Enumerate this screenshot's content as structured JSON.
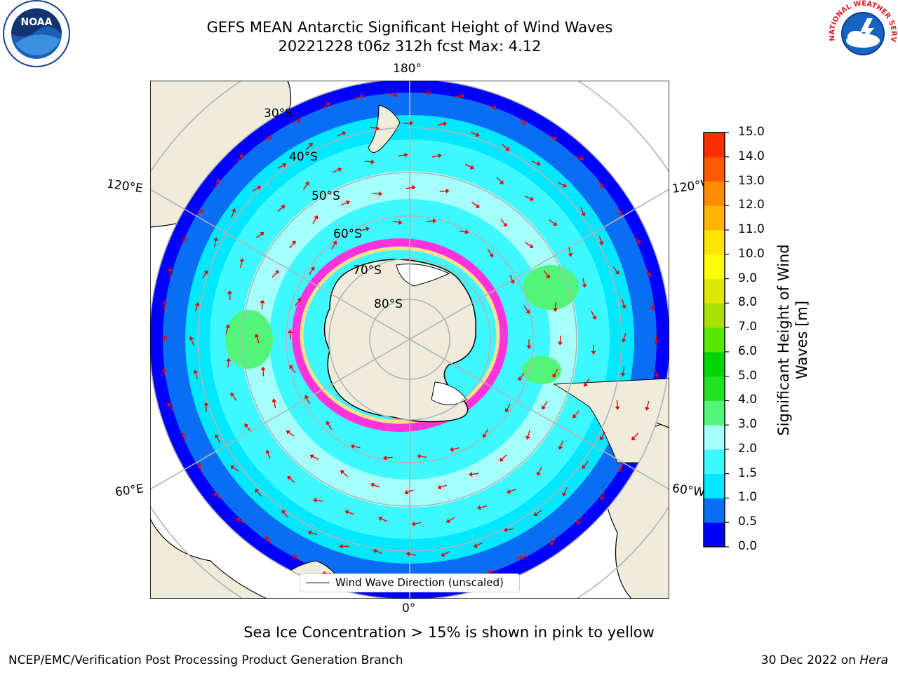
{
  "title": {
    "line1": "GEFS MEAN Antarctic Significant Height of Wind Waves",
    "line2": "20221228 t06z 312h fcst   Max: 4.12"
  },
  "map": {
    "projection": "south-polar-stereographic",
    "longitude_labels": {
      "top": "180°",
      "bottom": "0°",
      "upper_left": "120°E",
      "upper_right": "120°W",
      "lower_left": "60°E",
      "lower_right": "60°W"
    },
    "latitude_labels": [
      "30°S",
      "40°S",
      "50°S",
      "60°S",
      "70°S",
      "80°S"
    ],
    "colors": {
      "land": "#efecdc",
      "ice_pink": "#ff33dd",
      "ice_white": "#ffffff",
      "arrow": "#ee0000",
      "grid": "#b3b3b3"
    }
  },
  "legend": {
    "label": "Wind Wave Direction (unscaled)"
  },
  "colorbar": {
    "title_line1": "Significant Height of Wind",
    "title_line2": "Waves [m]",
    "ticks": [
      "0.0",
      "0.5",
      "1.0",
      "1.5",
      "2.0",
      "3.0",
      "4.0",
      "5.0",
      "6.0",
      "7.0",
      "8.0",
      "9.0",
      "10.0",
      "11.0",
      "12.0",
      "13.0",
      "14.0",
      "15.0"
    ],
    "colors": [
      "#0000ff",
      "#0a6ef5",
      "#00e8ff",
      "#3ef8ff",
      "#a5fffa",
      "#52f57a",
      "#22e022",
      "#00d600",
      "#55e800",
      "#aae000",
      "#dde800",
      "#ffff00",
      "#ffe600",
      "#ffb400",
      "#ff8c00",
      "#ff5a00",
      "#ff2e00"
    ]
  },
  "caption": "Sea Ice Concentration > 15% is shown in pink to yellow",
  "footer": {
    "left": "NCEP/EMC/Verification Post Processing Product Generation Branch",
    "right_date": "30 Dec 2022 on ",
    "right_machine": "Hera"
  },
  "logos": {
    "noaa": "NOAA",
    "nws_text": "NATIONAL WEATHER SERVICE"
  }
}
